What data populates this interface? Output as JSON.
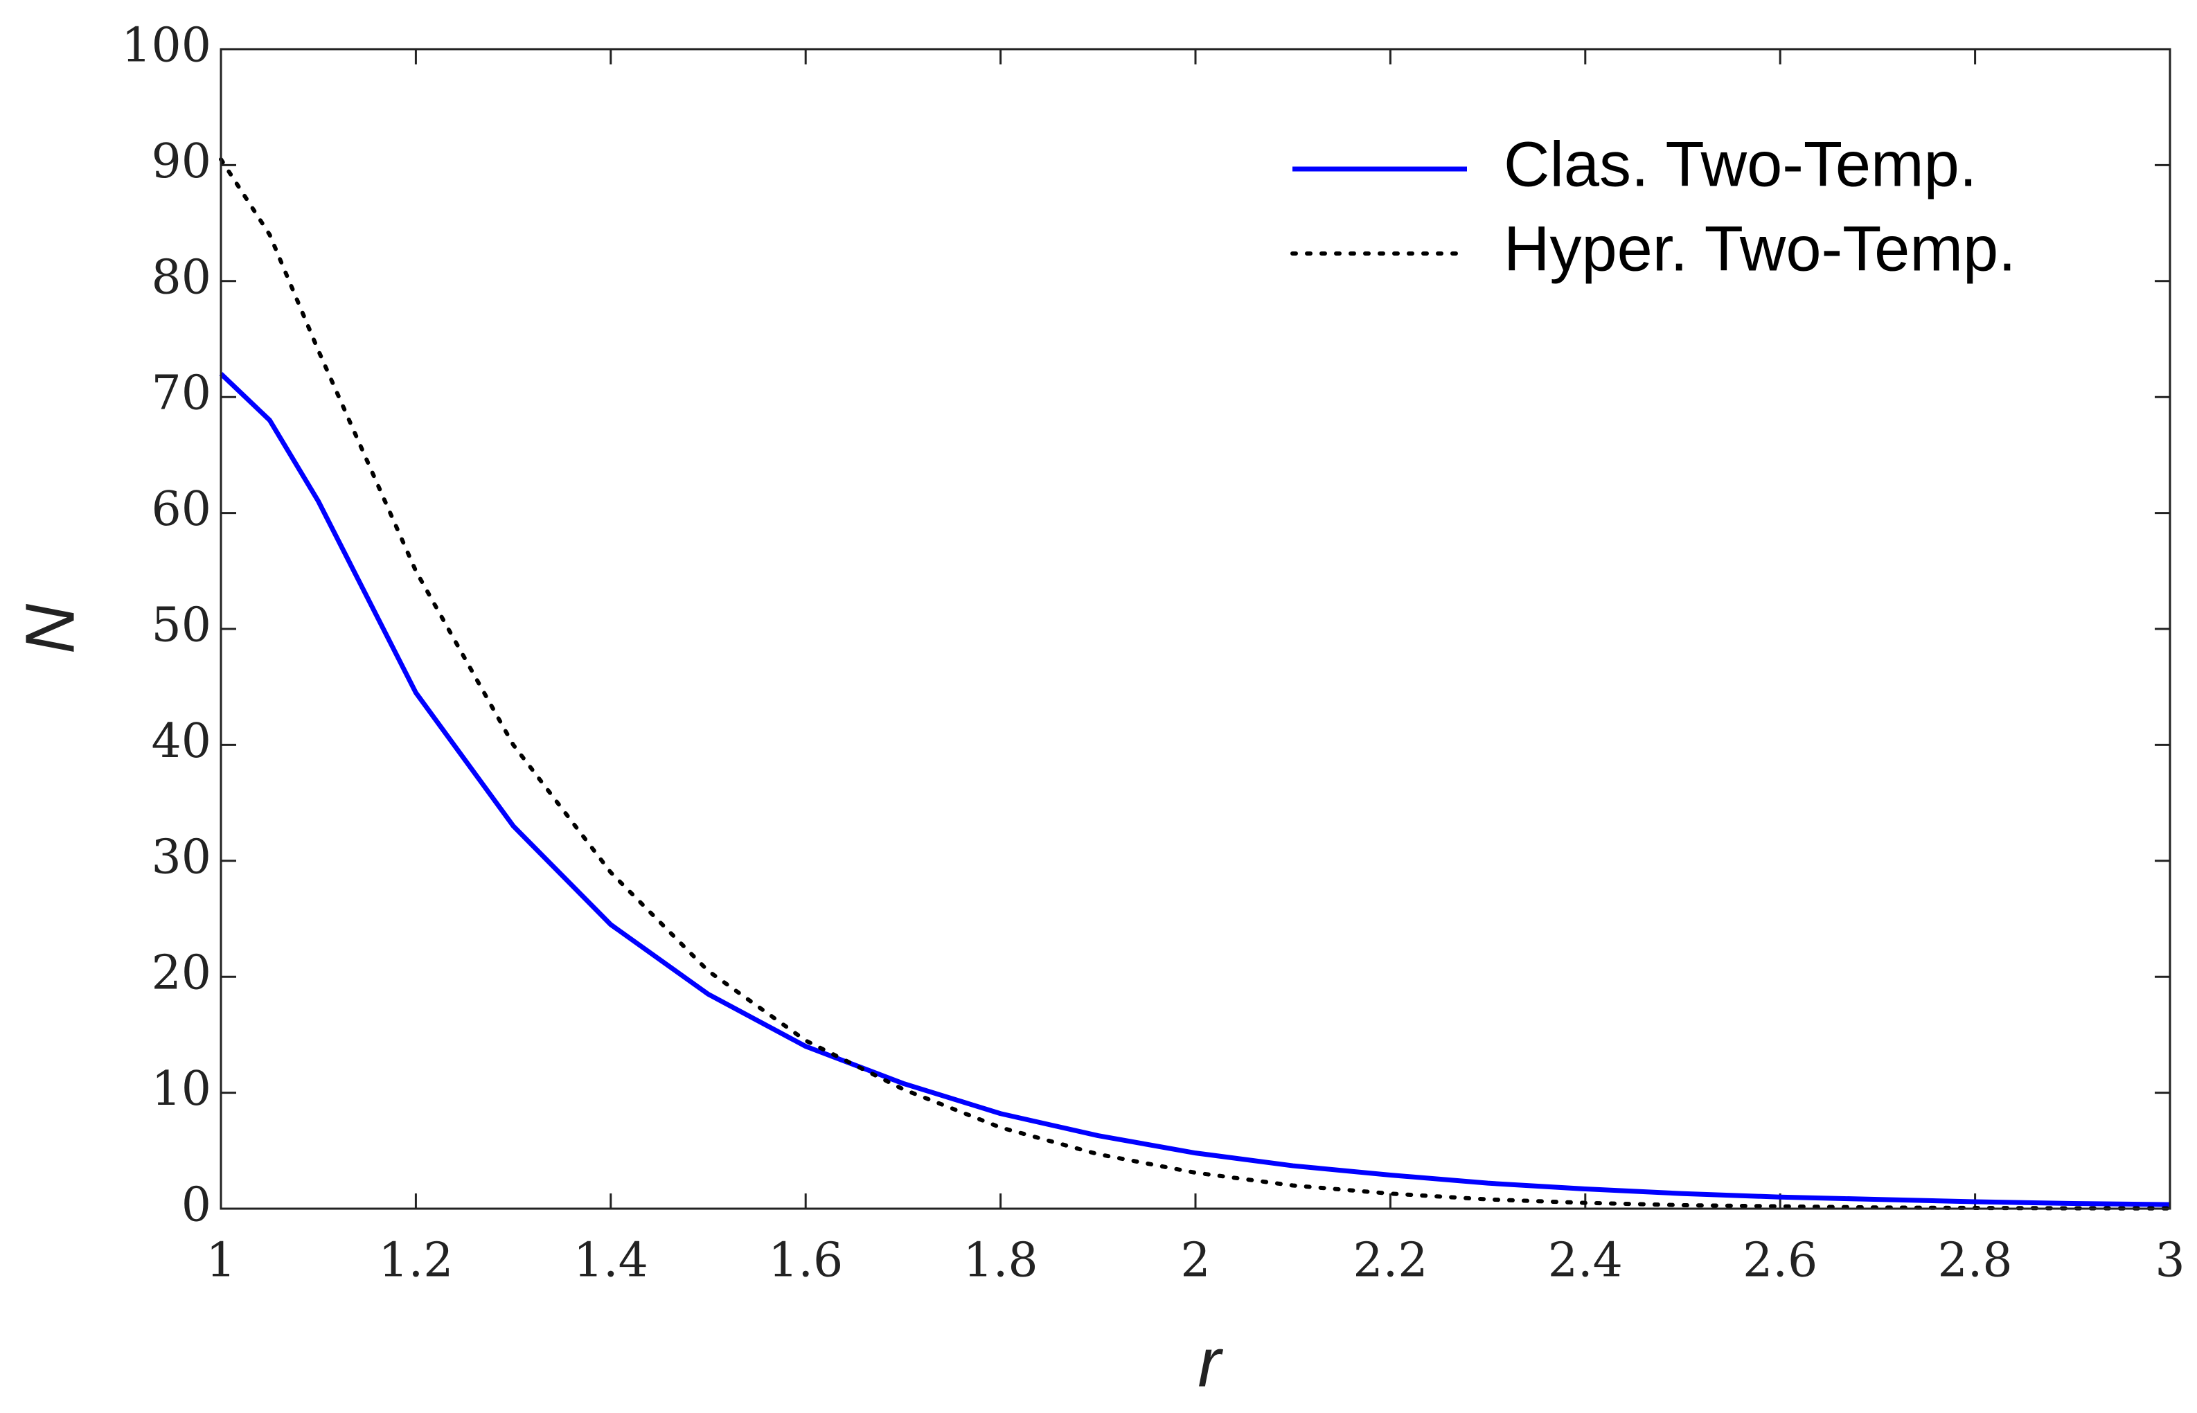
{
  "chart_data": {
    "type": "line",
    "xlabel": "r",
    "ylabel": "N",
    "x": [
      1,
      1.05,
      1.1,
      1.2,
      1.3,
      1.4,
      1.5,
      1.6,
      1.7,
      1.8,
      1.9,
      2,
      2.1,
      2.2,
      2.3,
      2.4,
      2.5,
      2.6,
      2.7,
      2.8,
      2.9,
      3
    ],
    "series": [
      {
        "name": "Clas. Two-Temp.",
        "color": "#0000ff",
        "style": "solid",
        "values": [
          72,
          68,
          61,
          44.5,
          33,
          24.5,
          18.5,
          14,
          10.8,
          8.2,
          6.3,
          4.8,
          3.7,
          2.9,
          2.2,
          1.7,
          1.3,
          1.0,
          0.8,
          0.6,
          0.45,
          0.35
        ]
      },
      {
        "name": "Hyper. Two-Temp.",
        "color": "#000000",
        "style": "dotted",
        "values": [
          90.5,
          84,
          74,
          55,
          40,
          29,
          20.5,
          14.5,
          10.3,
          7.0,
          4.7,
          3.1,
          2.0,
          1.3,
          0.8,
          0.5,
          0.3,
          0.2,
          0.1,
          0.06,
          0.03,
          0.02
        ]
      }
    ],
    "xlim": [
      1,
      3
    ],
    "xticks": [
      1,
      1.2,
      1.4,
      1.6,
      1.8,
      2,
      2.2,
      2.4,
      2.6,
      2.8,
      3
    ],
    "ylim": [
      0,
      100
    ],
    "yticks": [
      0,
      10,
      20,
      30,
      40,
      50,
      60,
      70,
      80,
      90,
      100
    ],
    "grid": false,
    "legend": "upper right"
  }
}
